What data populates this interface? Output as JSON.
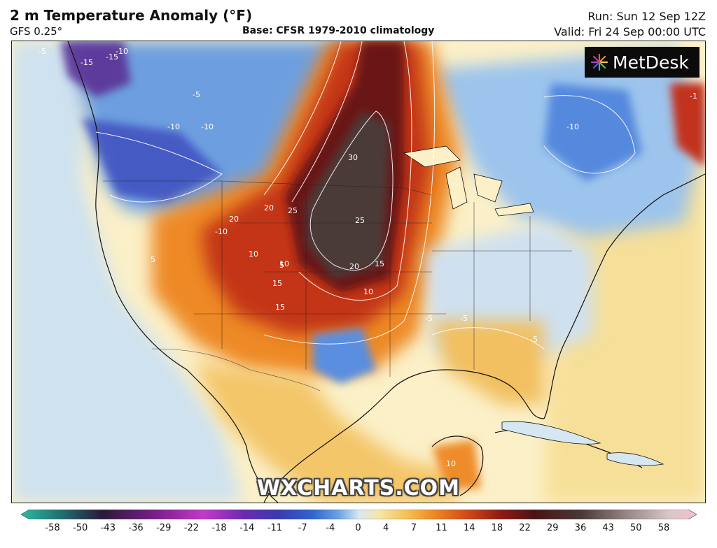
{
  "header": {
    "title": "2 m Temperature Anomaly (°F)",
    "model": "GFS 0.25°",
    "base": "Base: CFSR 1979-2010 climatology",
    "run": "Run: Sun 12 Sep 12Z",
    "valid": "Valid: Fri 24 Sep 00:00 UTC"
  },
  "logo": {
    "text": "MetDesk",
    "icon": "metdesk-logo-icon"
  },
  "watermark": "WXCHARTS.COM",
  "colors": {
    "ocean": "#fbf2cf",
    "cold_strong": "#3a3ab0",
    "cold_mid": "#4f86dc",
    "cold_light": "#bad6ee",
    "warm_light": "#f4d27a",
    "warm_mid": "#f08a24",
    "warm_strong": "#c2301c",
    "hot": "#6e1414",
    "extreme": "#4a3a38"
  },
  "colorbar": {
    "ticks": [
      "-58",
      "-50",
      "-43",
      "-36",
      "-29",
      "-22",
      "-18",
      "-14",
      "-11",
      "-7",
      "-4",
      "0",
      "4",
      "7",
      "11",
      "14",
      "18",
      "22",
      "29",
      "36",
      "43",
      "50",
      "58"
    ]
  },
  "contour_labels": [
    {
      "label": "30"
    },
    {
      "label": "25"
    },
    {
      "label": "25"
    },
    {
      "label": "20"
    },
    {
      "label": "20"
    },
    {
      "label": "20"
    },
    {
      "label": "15"
    },
    {
      "label": "15"
    },
    {
      "label": "15"
    },
    {
      "label": "10"
    },
    {
      "label": "10"
    },
    {
      "label": "10"
    },
    {
      "label": "10"
    },
    {
      "label": "-10"
    },
    {
      "label": "-10"
    },
    {
      "label": "-10"
    },
    {
      "label": "-10"
    },
    {
      "label": "-10"
    },
    {
      "label": "-15"
    },
    {
      "label": "-15"
    },
    {
      "label": "-5"
    },
    {
      "label": "-5"
    },
    {
      "label": "-5"
    },
    {
      "label": "-5"
    },
    {
      "label": "-5"
    },
    {
      "label": "5"
    },
    {
      "label": "5"
    },
    {
      "label": "-1"
    }
  ]
}
